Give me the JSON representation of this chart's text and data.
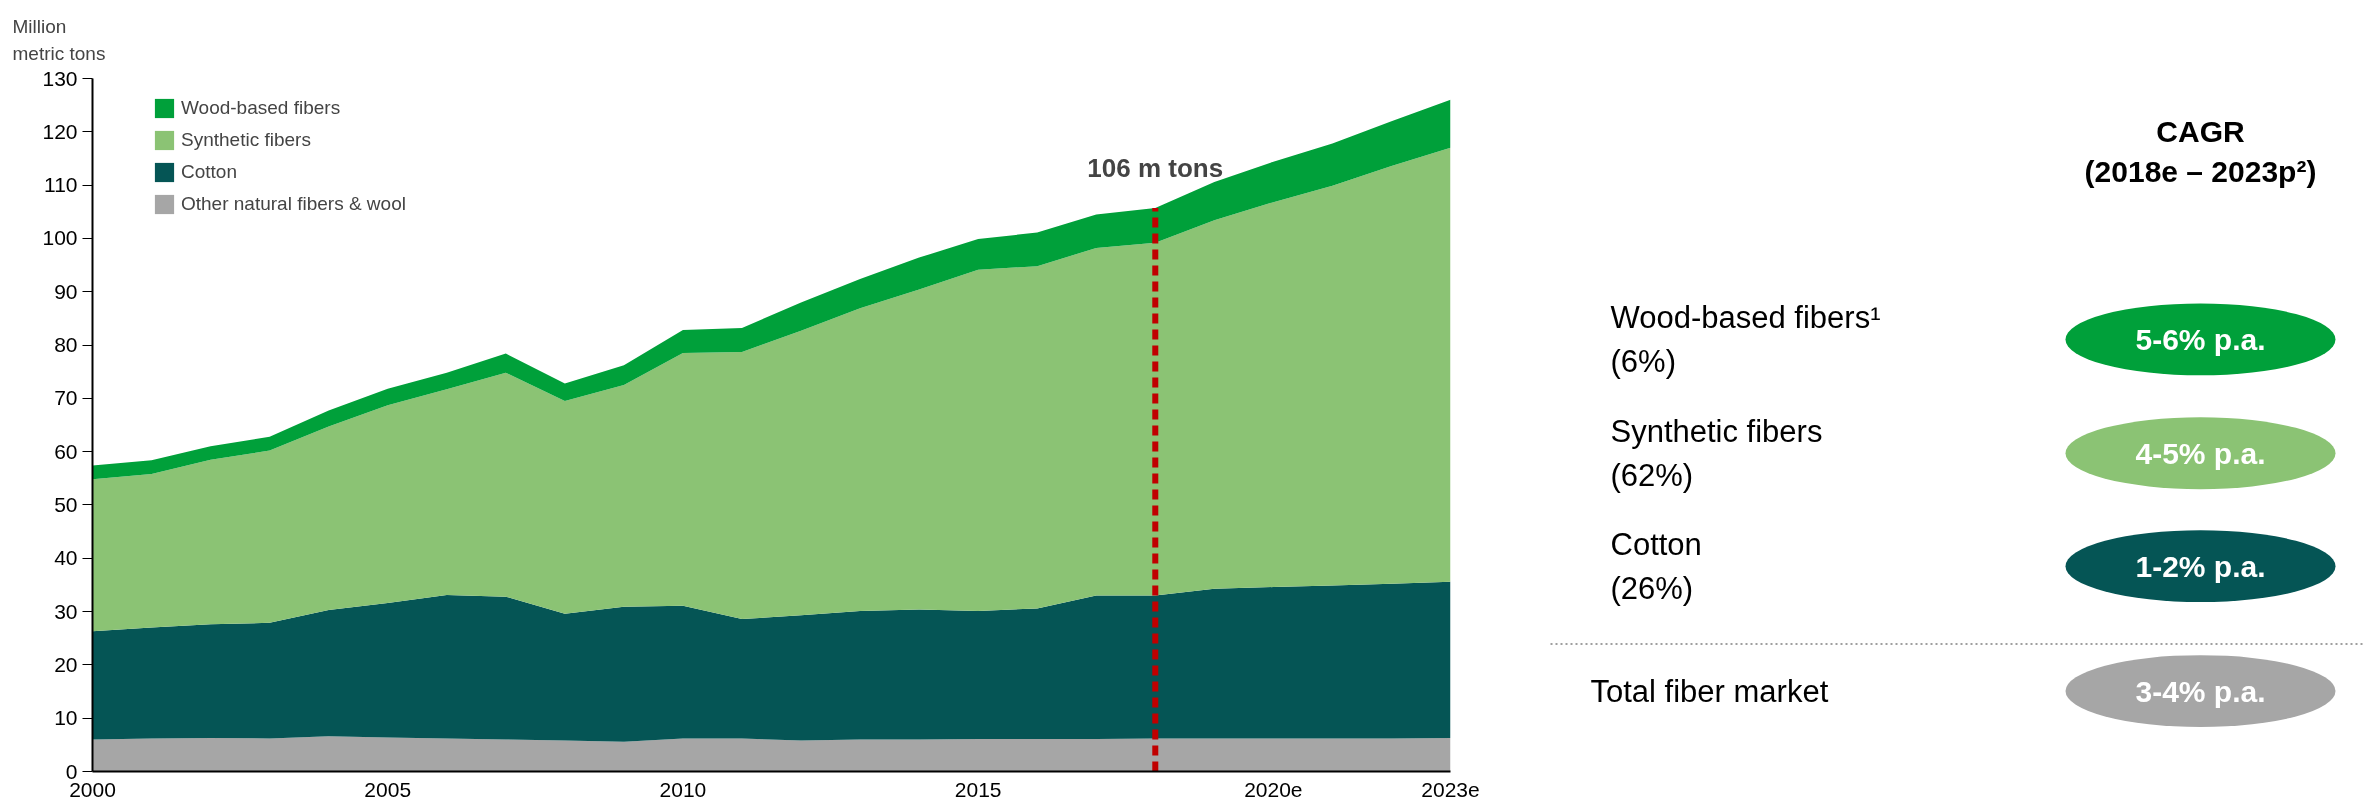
{
  "chart_data": [
    {
      "type": "area",
      "stacked": true,
      "ylabel": "Million\nmetric tons",
      "x": [
        2000,
        2001,
        2002,
        2003,
        2004,
        2005,
        2006,
        2007,
        2008,
        2009,
        2010,
        2011,
        2012,
        2013,
        2014,
        2015,
        2016,
        2017,
        2018,
        2019,
        2020,
        2021,
        2022,
        2023
      ],
      "series": [
        {
          "name": "Other natural fibers & wool",
          "color": "#a6a6a6",
          "values": [
            6.0,
            6.2,
            6.3,
            6.2,
            6.6,
            6.4,
            6.2,
            6.0,
            5.8,
            5.6,
            6.2,
            6.2,
            5.8,
            6.0,
            6.0,
            6.1,
            6.1,
            6.1,
            6.2,
            6.2,
            6.2,
            6.2,
            6.2,
            6.3
          ]
        },
        {
          "name": "Cotton",
          "color": "#055555",
          "values": [
            20.3,
            20.8,
            21.3,
            21.7,
            23.7,
            25.2,
            26.9,
            26.8,
            23.8,
            25.3,
            24.9,
            22.4,
            23.5,
            24.1,
            24.4,
            24.0,
            24.5,
            26.9,
            26.8,
            28.1,
            28.4,
            28.7,
            29.0,
            29.3
          ]
        },
        {
          "name": "Synthetic fibers",
          "color": "#8bc374",
          "values": [
            28.5,
            28.8,
            30.9,
            32.3,
            34.4,
            37.1,
            38.6,
            42.0,
            39.9,
            41.6,
            47.4,
            50.1,
            53.4,
            56.8,
            60.0,
            64.0,
            64.2,
            65.2,
            66.2,
            69.1,
            72.2,
            75.0,
            78.4,
            81.4
          ]
        },
        {
          "name": "Wood-based fibers",
          "color": "#00a03a",
          "values": [
            2.6,
            2.6,
            2.5,
            2.6,
            3.0,
            3.1,
            3.1,
            3.6,
            3.3,
            3.7,
            4.3,
            4.5,
            5.3,
            5.5,
            6.0,
            5.8,
            6.3,
            6.3,
            6.5,
            7.2,
            7.6,
            7.9,
            8.4,
            9.0
          ]
        }
      ],
      "xlim": [
        2000,
        2023
      ],
      "ylim": [
        0,
        130
      ],
      "xticks": [
        2000,
        2005,
        2010,
        2015,
        {
          "value": 2020,
          "label": "2020e"
        },
        {
          "value": 2023,
          "label": "2023e"
        }
      ],
      "yticks": [
        0,
        10,
        20,
        30,
        40,
        50,
        60,
        70,
        80,
        90,
        100,
        110,
        120,
        130
      ],
      "ref_lines": [
        {
          "axis": "x",
          "value": 2018,
          "label": "106 m tons",
          "color": "#c00000",
          "line_style": "dashed"
        }
      ],
      "grid": false,
      "legend": "top left"
    },
    {
      "type": "other",
      "title": "CAGR\n(2018e – 2023p²)",
      "annotations": [
        "Wood-based fibers¹\n(6%)",
        "5-6% p.a.",
        "Synthetic fibers\n(62%)",
        "4-5% p.a.",
        "Cotton\n(26%)",
        "1-2% p.a.",
        "Total fiber market",
        "3-4% p.a."
      ],
      "colors": [
        "#00a03a",
        "#8bc374",
        "#055555",
        "#a6a6a6"
      ]
    }
  ]
}
